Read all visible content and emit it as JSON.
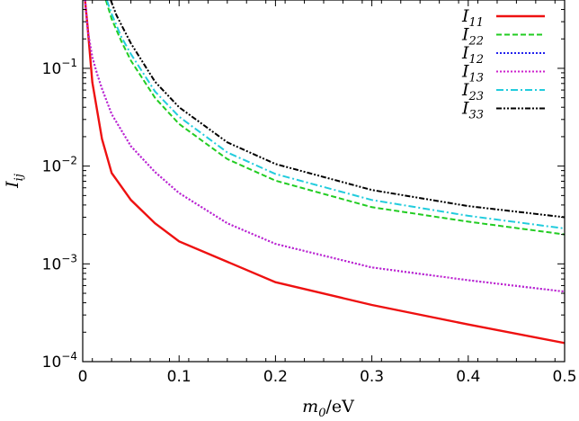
{
  "chart_data": {
    "type": "line",
    "title": "",
    "xlabel": {
      "main": "m",
      "sub": "0",
      "rest": "/eV"
    },
    "ylabel": {
      "main": "I",
      "sub": "ij"
    },
    "xlim": [
      0,
      0.5
    ],
    "ylim": [
      0.0001,
      0.5
    ],
    "yscale": "log",
    "grid": false,
    "legend_position": "top-right",
    "x_ticks": [
      0,
      0.1,
      0.2,
      0.3,
      0.4,
      0.5
    ],
    "x_tick_labels": [
      "0",
      "0.1",
      "0.2",
      "0.3",
      "0.4",
      "0.5"
    ],
    "y_ticks": [
      0.0001,
      0.001,
      0.01,
      0.1
    ],
    "y_tick_labels": [
      {
        "base": "10",
        "exp": "−4"
      },
      {
        "base": "10",
        "exp": "−3"
      },
      {
        "base": "10",
        "exp": "−2"
      },
      {
        "base": "10",
        "exp": "−1"
      }
    ],
    "series": [
      {
        "name": "I",
        "sub": "11",
        "color": "#ee1111",
        "dash": "",
        "width": 2.4,
        "x": [
          0.002,
          0.005,
          0.01,
          0.02,
          0.03,
          0.05,
          0.075,
          0.1,
          0.15,
          0.2,
          0.3,
          0.4,
          0.5
        ],
        "y": [
          0.55,
          0.27,
          0.072,
          0.019,
          0.0085,
          0.0045,
          0.0026,
          0.0017,
          0.00105,
          0.00065,
          0.00038,
          0.00024,
          0.000155
        ]
      },
      {
        "name": "I",
        "sub": "22",
        "color": "#22cc22",
        "dash": "6 3",
        "width": 2,
        "x": [
          0.024,
          0.03,
          0.04,
          0.05,
          0.075,
          0.1,
          0.15,
          0.2,
          0.3,
          0.4,
          0.5
        ],
        "y": [
          0.5,
          0.32,
          0.19,
          0.12,
          0.05,
          0.027,
          0.0118,
          0.0071,
          0.0038,
          0.0027,
          0.002
        ]
      },
      {
        "name": "I",
        "sub": "12",
        "color": "#2222ee",
        "dash": "2 2",
        "width": 2,
        "x": [
          0.0025,
          0.005,
          0.01,
          0.015,
          0.02,
          0.03,
          0.05,
          0.075,
          0.1,
          0.15,
          0.2,
          0.3,
          0.4,
          0.5
        ],
        "y": [
          0.5,
          0.25,
          0.13,
          0.087,
          0.062,
          0.034,
          0.016,
          0.0087,
          0.0053,
          0.0026,
          0.0016,
          0.00092,
          0.00068,
          0.00052
        ]
      },
      {
        "name": "I",
        "sub": "13",
        "color": "#cc22cc",
        "dash": "2 2",
        "width": 2,
        "x": [
          0.0025,
          0.005,
          0.01,
          0.015,
          0.02,
          0.03,
          0.05,
          0.075,
          0.1,
          0.15,
          0.2,
          0.3,
          0.4,
          0.5
        ],
        "y": [
          0.5,
          0.25,
          0.13,
          0.087,
          0.062,
          0.034,
          0.016,
          0.0087,
          0.0053,
          0.0026,
          0.0016,
          0.00092,
          0.00068,
          0.00052
        ]
      },
      {
        "name": "I",
        "sub": "23",
        "color": "#22ccdd",
        "dash": "8 3 2 3",
        "width": 2,
        "x": [
          0.025,
          0.03,
          0.04,
          0.05,
          0.075,
          0.1,
          0.15,
          0.2,
          0.3,
          0.4,
          0.5
        ],
        "y": [
          0.5,
          0.36,
          0.21,
          0.14,
          0.058,
          0.032,
          0.0138,
          0.0083,
          0.0045,
          0.0031,
          0.0023
        ]
      },
      {
        "name": "I",
        "sub": "33",
        "color": "#000000",
        "dash": "6 2 2 2 2 2",
        "width": 2,
        "x": [
          0.029,
          0.035,
          0.04,
          0.05,
          0.075,
          0.1,
          0.15,
          0.2,
          0.3,
          0.4,
          0.5
        ],
        "y": [
          0.5,
          0.35,
          0.28,
          0.18,
          0.073,
          0.04,
          0.0175,
          0.0105,
          0.0057,
          0.0039,
          0.003
        ]
      }
    ]
  }
}
